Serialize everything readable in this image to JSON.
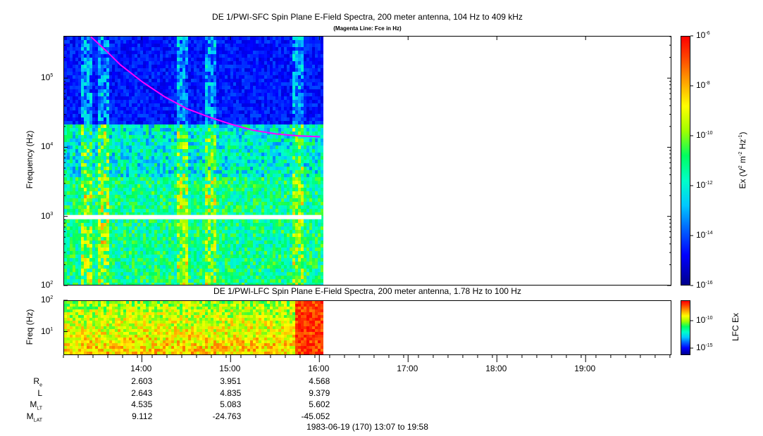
{
  "chart_data": [
    {
      "type": "heatmap",
      "title": "DE 1/PWI-SFC  Spin Plane E-Field Spectra, 200 meter antenna, 104 Hz to 409 kHz",
      "subtitle": "(Magenta Line: Fce in Hz)",
      "ylabel": "Frequency (Hz)",
      "yscale": "log",
      "ylim": [
        100,
        409000
      ],
      "yticks": [
        "10^2",
        "10^3",
        "10^4",
        "10^5"
      ],
      "colorbar": {
        "label": "Ex (V^2 m^-2 Hz^-1)",
        "scale": "log",
        "range": [
          1e-16,
          1e-06
        ],
        "ticks": [
          "10^-16",
          "10^-14",
          "10^-12",
          "10^-10",
          "10^-8",
          "10^-6"
        ]
      },
      "series": [
        {
          "name": "Fce in Hz",
          "color": "#ff00ff",
          "x": [
            "13:25",
            "13:35",
            "13:45",
            "14:00",
            "14:15",
            "14:30",
            "14:45",
            "15:00",
            "15:15",
            "15:30",
            "15:45",
            "16:00"
          ],
          "y": [
            409000,
            260000,
            160000,
            90000,
            55000,
            37000,
            28000,
            22000,
            18000,
            16000,
            15000,
            14500
          ]
        }
      ]
    },
    {
      "type": "heatmap",
      "title": "DE 1/PWI-LFC  Spin Plane E-Field Spectra, 200 meter antenna, 1.78 Hz to 100 Hz",
      "ylabel": "Freq (Hz)",
      "yscale": "log",
      "ylim": [
        1.78,
        100
      ],
      "yticks": [
        "10^1",
        "10^2"
      ],
      "colorbar": {
        "label": "LFC Ex",
        "scale": "log",
        "ticks": [
          "10^-15",
          "10^-10"
        ]
      }
    }
  ],
  "xaxis": {
    "range": [
      "13:07",
      "19:58"
    ],
    "ticks": [
      "14:00",
      "15:00",
      "16:00",
      "17:00",
      "18:00",
      "19:00"
    ]
  },
  "ephemeris": {
    "rows": [
      {
        "label": "R",
        "sub": "e",
        "values": [
          "2.603",
          "3.951",
          "4.568"
        ]
      },
      {
        "label": "L",
        "sub": "",
        "values": [
          "2.643",
          "4.835",
          "9.379"
        ]
      },
      {
        "label": "M",
        "sub": "LT",
        "values": [
          "4.535",
          "5.083",
          "5.602"
        ]
      },
      {
        "label": "M",
        "sub": "LAT",
        "values": [
          "9.112",
          "-24.763",
          "-45.052"
        ]
      }
    ]
  },
  "footer": "1983-06-19 (170) 13:07 to 19:58",
  "colors": {
    "fce_line": "#ff00ff",
    "gap": "#ffffff"
  }
}
